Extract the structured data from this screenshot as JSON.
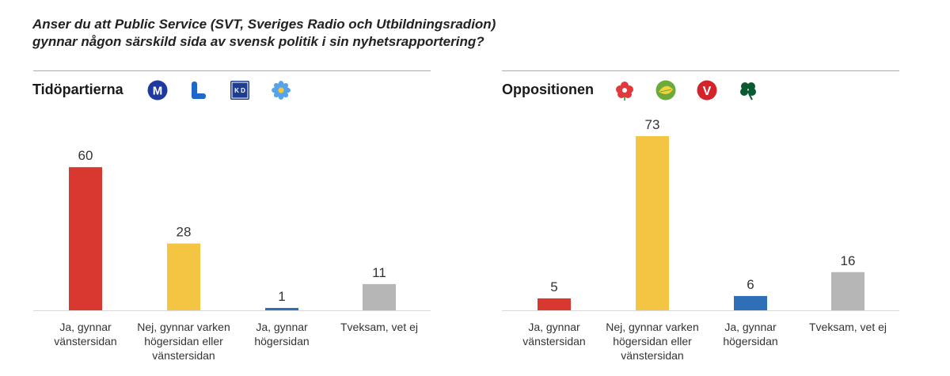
{
  "title": {
    "line1": "Anser du att Public Service (SVT, Sveriges Radio och Utbildningsradion)",
    "line2": "gynnar någon särskild sida av svensk politik i sin nyhetsrapportering?"
  },
  "panels": [
    {
      "heading": "Tidöpartierna",
      "logos": [
        "moderaterna-logo",
        "liberalerna-logo",
        "kristdemokraterna-logo",
        "sverigedemokraterna-logo"
      ],
      "logo_text": {
        "m": "M",
        "l": "L",
        "kd": "K D"
      }
    },
    {
      "heading": "Oppositionen",
      "logos": [
        "socialdemokraterna-logo",
        "miljopartiet-logo",
        "vansterpartiet-logo",
        "centerpartiet-logo"
      ],
      "logo_text": {
        "v": "V"
      }
    }
  ],
  "colors": {
    "red": "#d93831",
    "yellow": "#f4c443",
    "blue": "#2f6fb8",
    "grey": "#b6b6b6",
    "rule": "#c9a66b"
  },
  "chart_data": [
    {
      "type": "bar",
      "title": "Tidöpartierna",
      "categories": [
        [
          "Ja, gynnar",
          "vänstersidan"
        ],
        [
          "Nej, gynnar varken",
          "högersidan eller",
          "vänstersidan"
        ],
        [
          "Ja, gynnar",
          "högersidan"
        ],
        [
          "Tveksam, vet ej"
        ]
      ],
      "values": [
        60,
        28,
        1,
        11
      ],
      "bar_colors": [
        "#d93831",
        "#f4c443",
        "#2f6fb8",
        "#b6b6b6"
      ],
      "ylim": [
        0,
        73
      ],
      "grid": false
    },
    {
      "type": "bar",
      "title": "Oppositionen",
      "categories": [
        [
          "Ja, gynnar",
          "vänstersidan"
        ],
        [
          "Nej, gynnar varken",
          "högersidan eller",
          "vänstersidan"
        ],
        [
          "Ja, gynnar",
          "högersidan"
        ],
        [
          "Tveksam, vet ej"
        ]
      ],
      "values": [
        5,
        73,
        6,
        16
      ],
      "bar_colors": [
        "#d93831",
        "#f4c443",
        "#2f6fb8",
        "#b6b6b6"
      ],
      "ylim": [
        0,
        73
      ],
      "grid": false
    }
  ]
}
